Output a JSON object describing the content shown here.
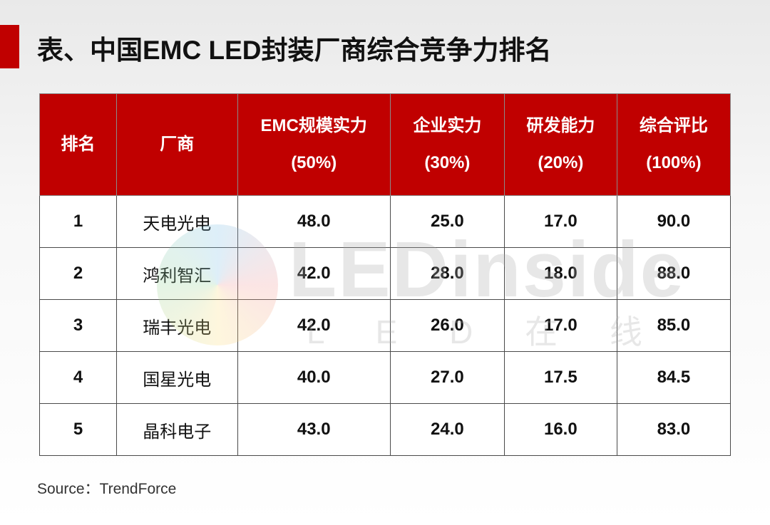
{
  "header": {
    "title": "表、中国EMC LED封装厂商综合竞争力排名"
  },
  "table": {
    "columns": [
      [
        "排名"
      ],
      [
        "厂商"
      ],
      [
        "EMC规模实力",
        "(50%)"
      ],
      [
        "企业实力",
        "(30%)"
      ],
      [
        "研发能力",
        "(20%)"
      ],
      [
        "综合评比",
        "(100%)"
      ]
    ],
    "rows": [
      [
        "1",
        "天电光电",
        "48.0",
        "25.0",
        "17.0",
        "90.0"
      ],
      [
        "2",
        "鸿利智汇",
        "42.0",
        "28.0",
        "18.0",
        "88.0"
      ],
      [
        "3",
        "瑞丰光电",
        "42.0",
        "26.0",
        "17.0",
        "85.0"
      ],
      [
        "4",
        "国星光电",
        "40.0",
        "27.0",
        "17.5",
        "84.5"
      ],
      [
        "5",
        "晶科电子",
        "43.0",
        "24.0",
        "16.0",
        "83.0"
      ]
    ]
  },
  "watermark": {
    "logo": "LEDinside",
    "subtitle": "L E D 在 线"
  },
  "footer": {
    "source": "Source：TrendForce"
  }
}
